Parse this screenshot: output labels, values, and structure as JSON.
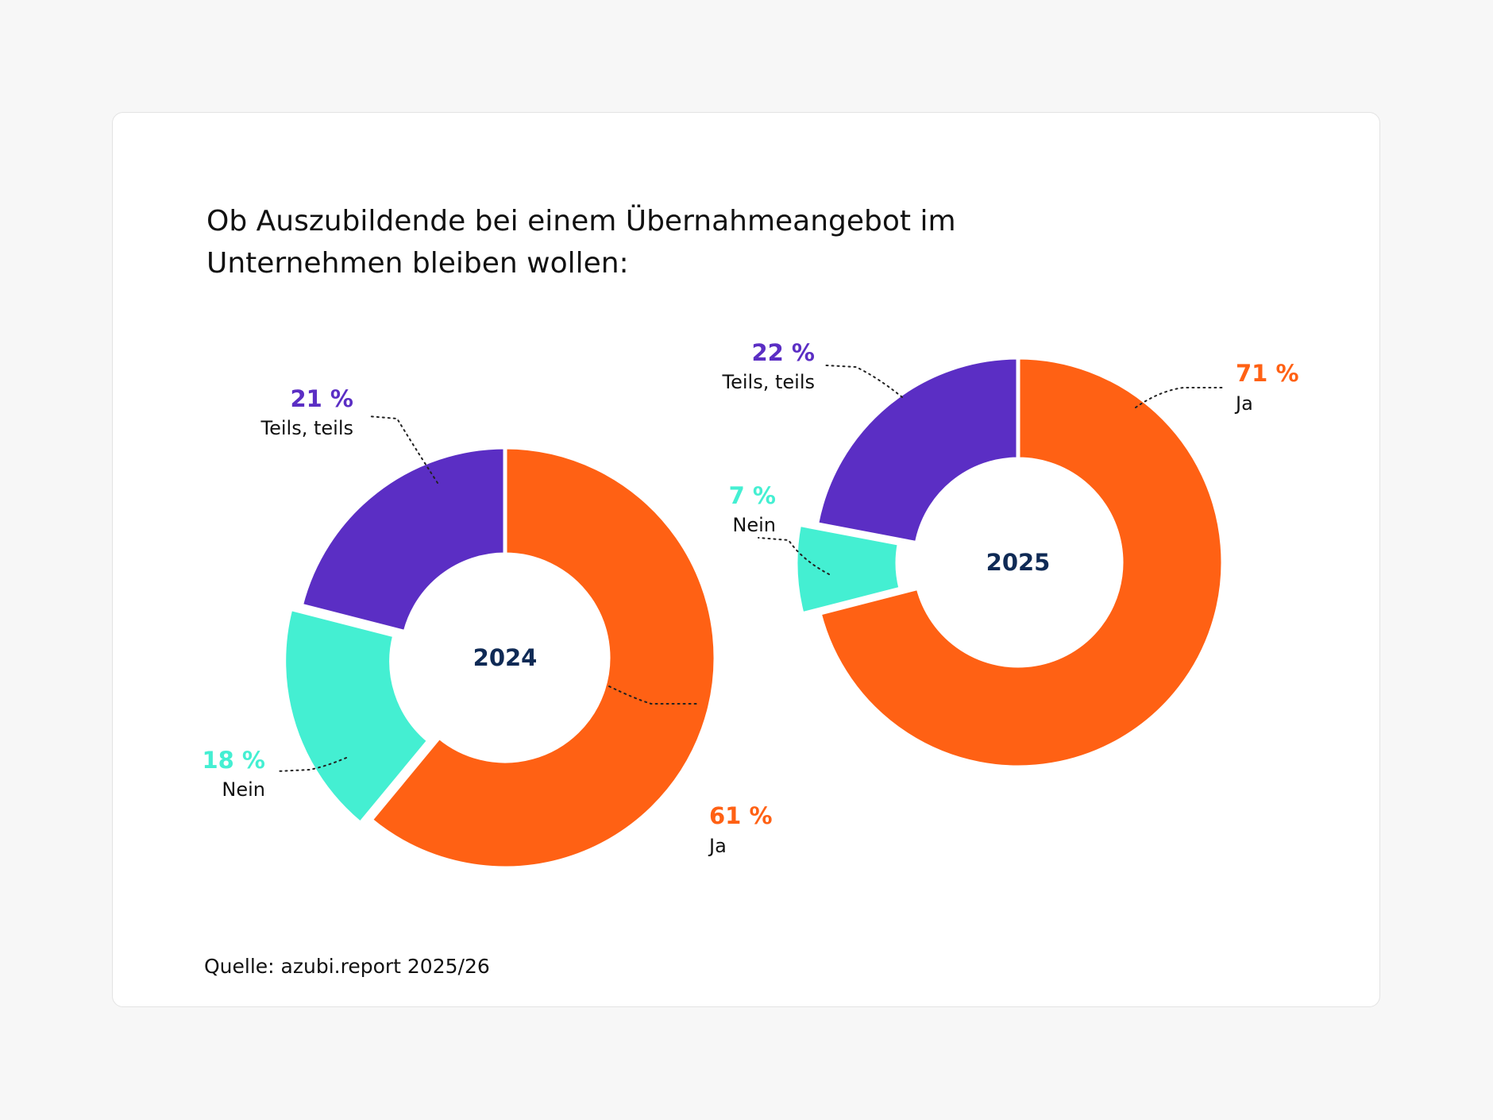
{
  "title": "Ob Auszubildende bei einem Übernahmeangebot im Unternehmen bleiben wollen:",
  "source": "Quelle: azubi.report 2025/26",
  "colors": {
    "ja": "#ff6114",
    "nein": "#44efd2",
    "teils": "#5b2ec4",
    "center_text": "#0f2a55",
    "background": "#f7f7f7",
    "card": "#ffffff"
  },
  "chart_data": [
    {
      "type": "pie",
      "title": "2024",
      "categories": [
        "Ja",
        "Nein",
        "Teils, teils"
      ],
      "values": [
        61,
        18,
        21
      ],
      "value_labels": [
        "61 %",
        "18 %",
        "21 %"
      ],
      "unit": "%"
    },
    {
      "type": "pie",
      "title": "2025",
      "categories": [
        "Ja",
        "Nein",
        "Teils, teils"
      ],
      "values": [
        71,
        7,
        22
      ],
      "value_labels": [
        "71 %",
        "7 %",
        "22 %"
      ],
      "unit": "%"
    }
  ]
}
